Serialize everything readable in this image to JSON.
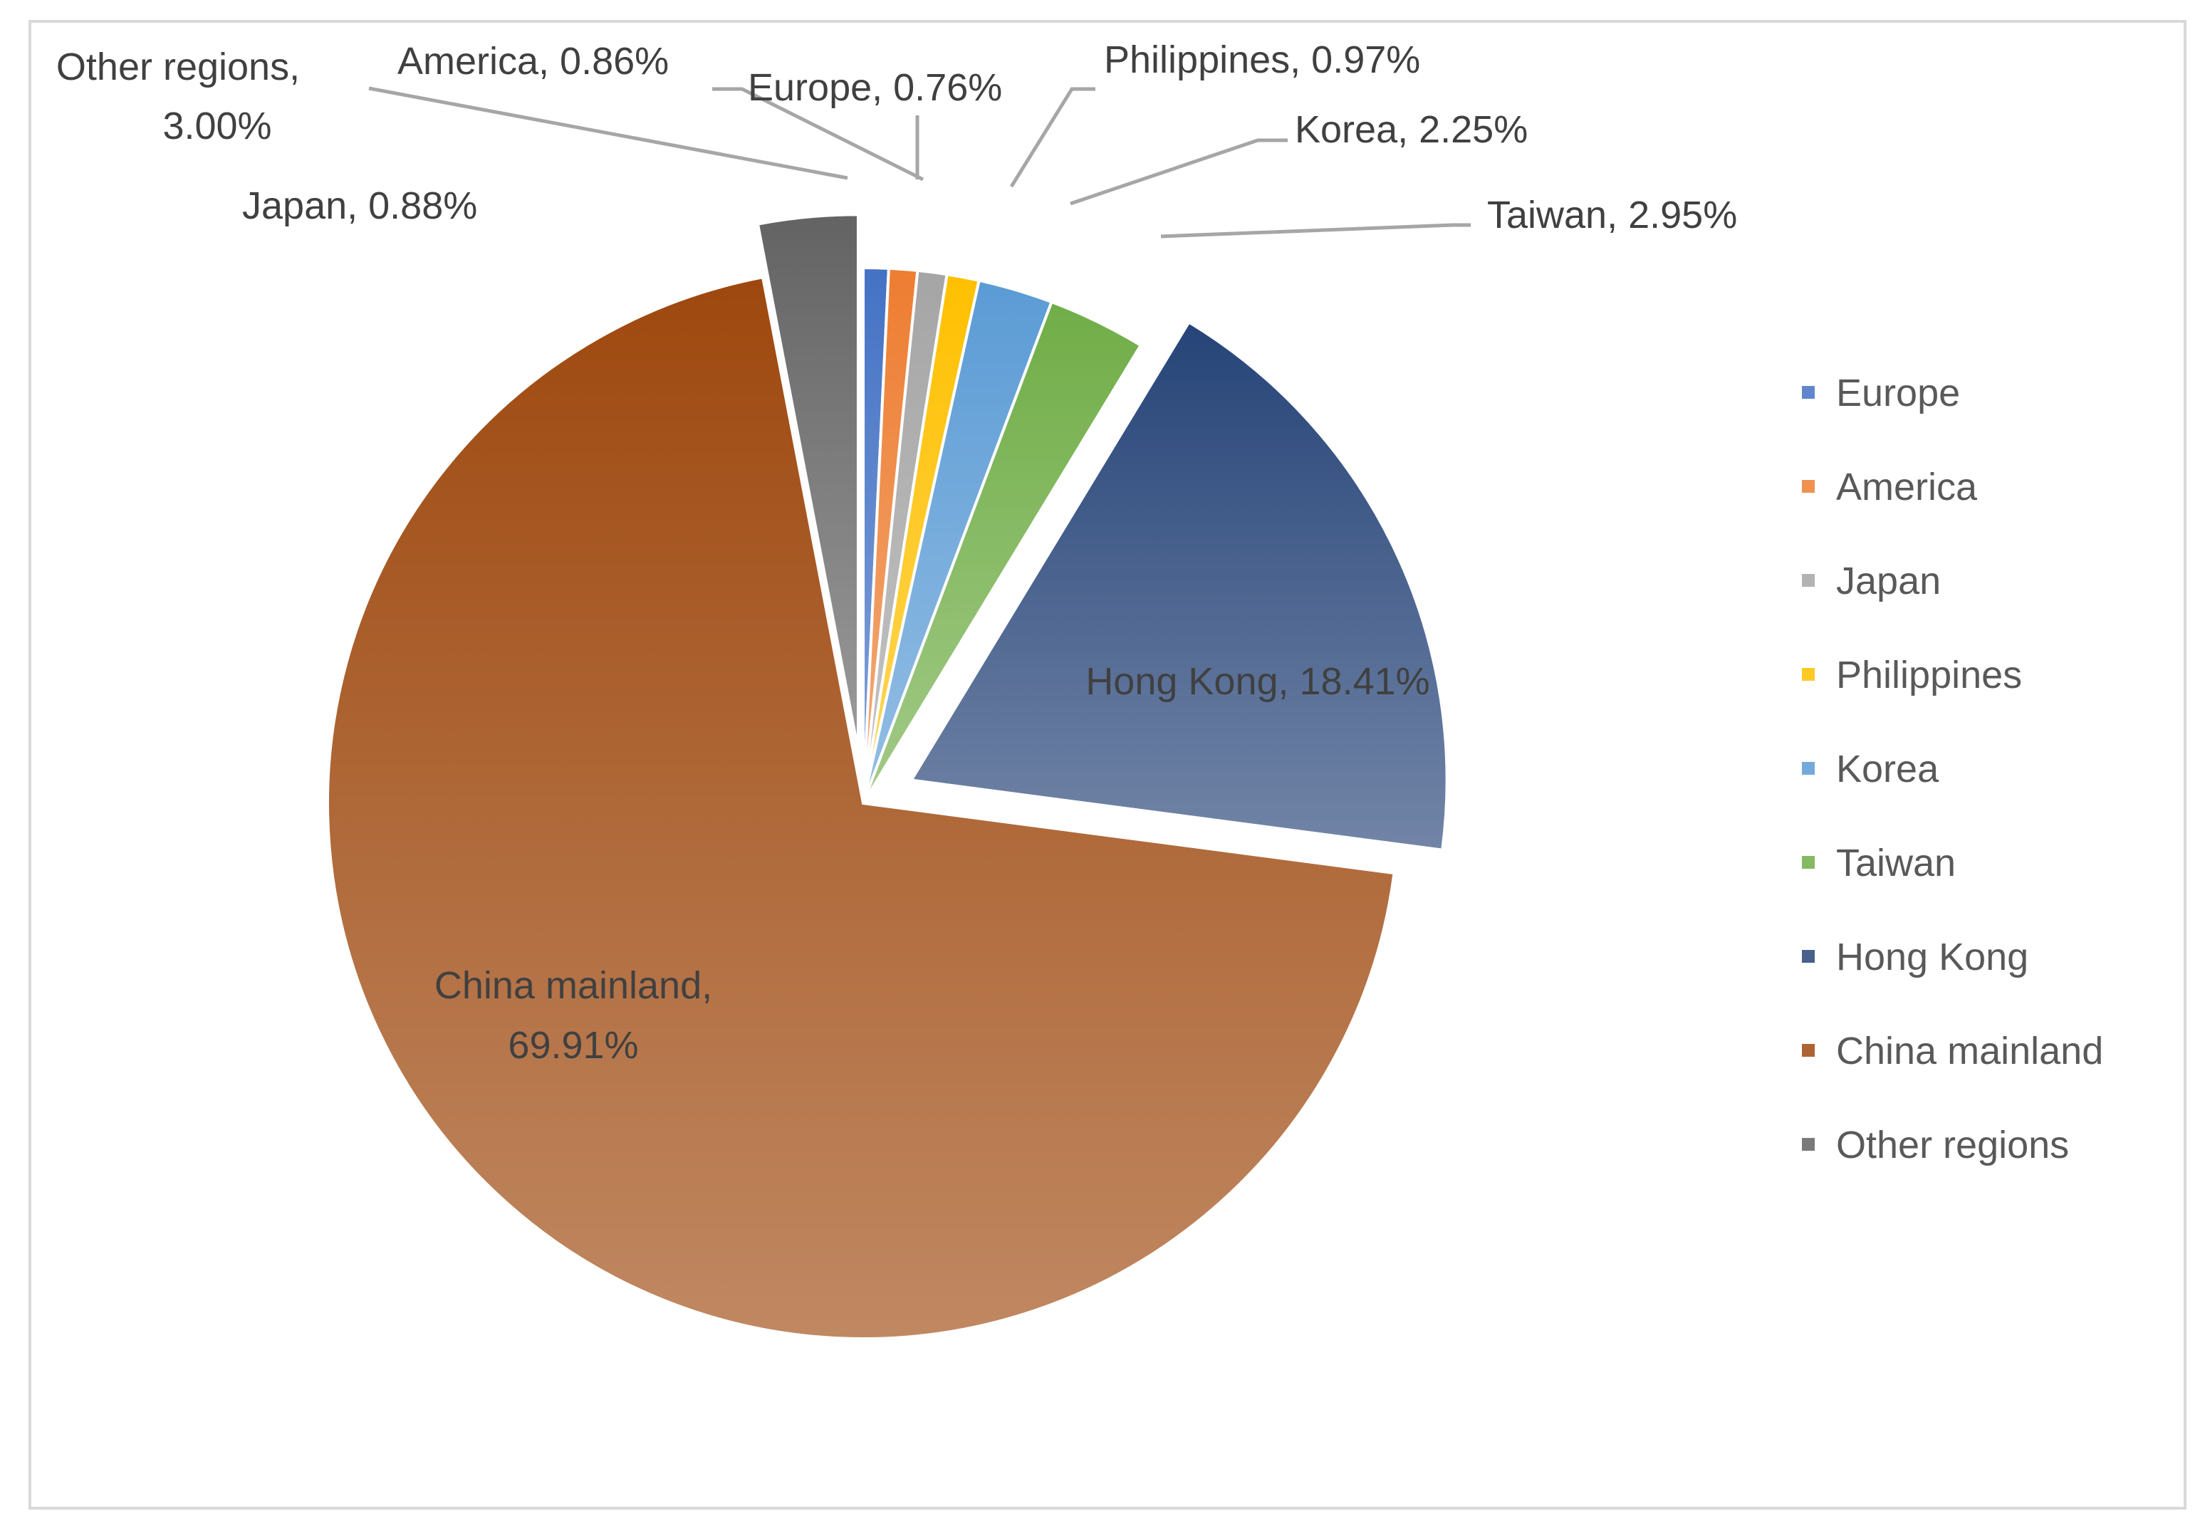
{
  "chart_data": {
    "type": "pie",
    "title": "",
    "legend_position": "right",
    "slices": [
      {
        "name": "Europe",
        "value": 0.76,
        "label": "Europe, 0.76%",
        "color": "#4472c4",
        "explode": false
      },
      {
        "name": "America",
        "value": 0.86,
        "label": "America, 0.86%",
        "color": "#ed7d31",
        "explode": false
      },
      {
        "name": "Japan",
        "value": 0.88,
        "label": "Japan, 0.88%",
        "color": "#a5a5a5",
        "explode": false
      },
      {
        "name": "Philippines",
        "value": 0.97,
        "label": "Philippines, 0.97%",
        "color": "#ffc000",
        "explode": false
      },
      {
        "name": "Korea",
        "value": 2.25,
        "label": "Korea, 2.25%",
        "color": "#5b9bd5",
        "explode": false
      },
      {
        "name": "Taiwan",
        "value": 2.95,
        "label": "Taiwan, 2.95%",
        "color": "#70ad47",
        "explode": false
      },
      {
        "name": "Hong Kong",
        "value": 18.41,
        "label": "Hong Kong, 18.41%",
        "color": "#264478",
        "explode": true
      },
      {
        "name": "China mainland",
        "value": 69.91,
        "label_lines": [
          "China mainland,",
          "69.91%"
        ],
        "color": "#9e480e",
        "explode": false
      },
      {
        "name": "Other regions",
        "value": 3.0,
        "label_lines": [
          "Other regions,",
          "3.00%"
        ],
        "color": "#636363",
        "explode": true
      }
    ],
    "legend": [
      "Europe",
      "America",
      "Japan",
      "Philippines",
      "Korea",
      "Taiwan",
      "Hong Kong",
      "China mainland",
      "Other regions"
    ]
  }
}
